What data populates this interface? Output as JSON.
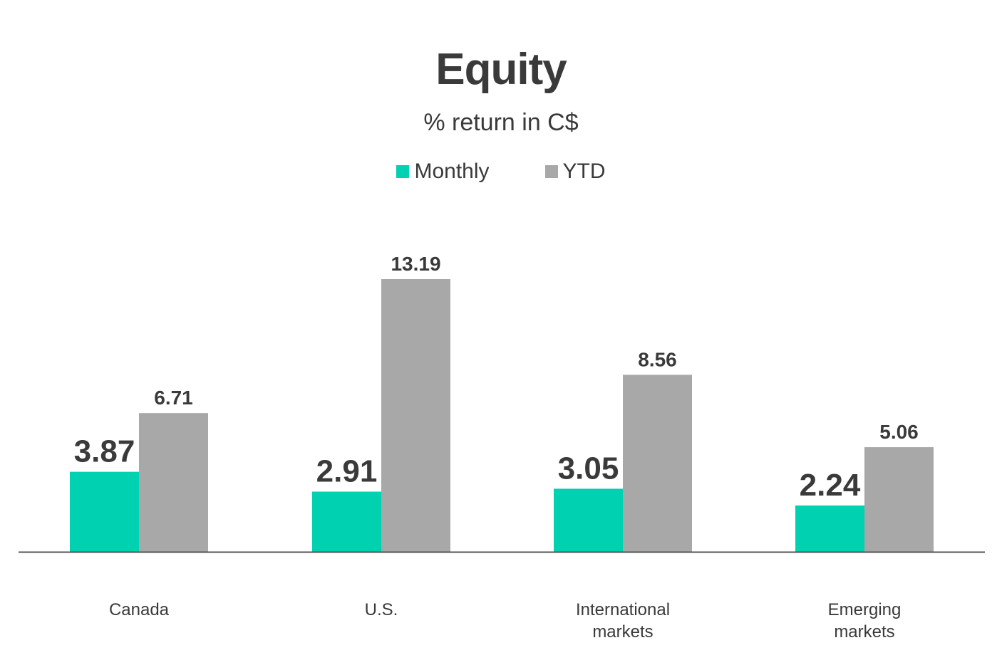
{
  "chart_data": {
    "type": "bar",
    "title": "Equity",
    "subtitle": "% return in C$",
    "categories": [
      [
        "Canada"
      ],
      [
        "U.S."
      ],
      [
        "International",
        "markets"
      ],
      [
        "Emerging",
        "markets"
      ]
    ],
    "series": [
      {
        "name": "Monthly",
        "color": "#00d1b0",
        "values": [
          3.87,
          2.91,
          3.05,
          2.24
        ]
      },
      {
        "name": "YTD",
        "color": "#a8a8a8",
        "values": [
          6.71,
          13.19,
          8.56,
          5.06
        ]
      }
    ],
    "ylim": [
      0,
      13.19
    ],
    "grid": false,
    "legend_position": "top-center"
  }
}
